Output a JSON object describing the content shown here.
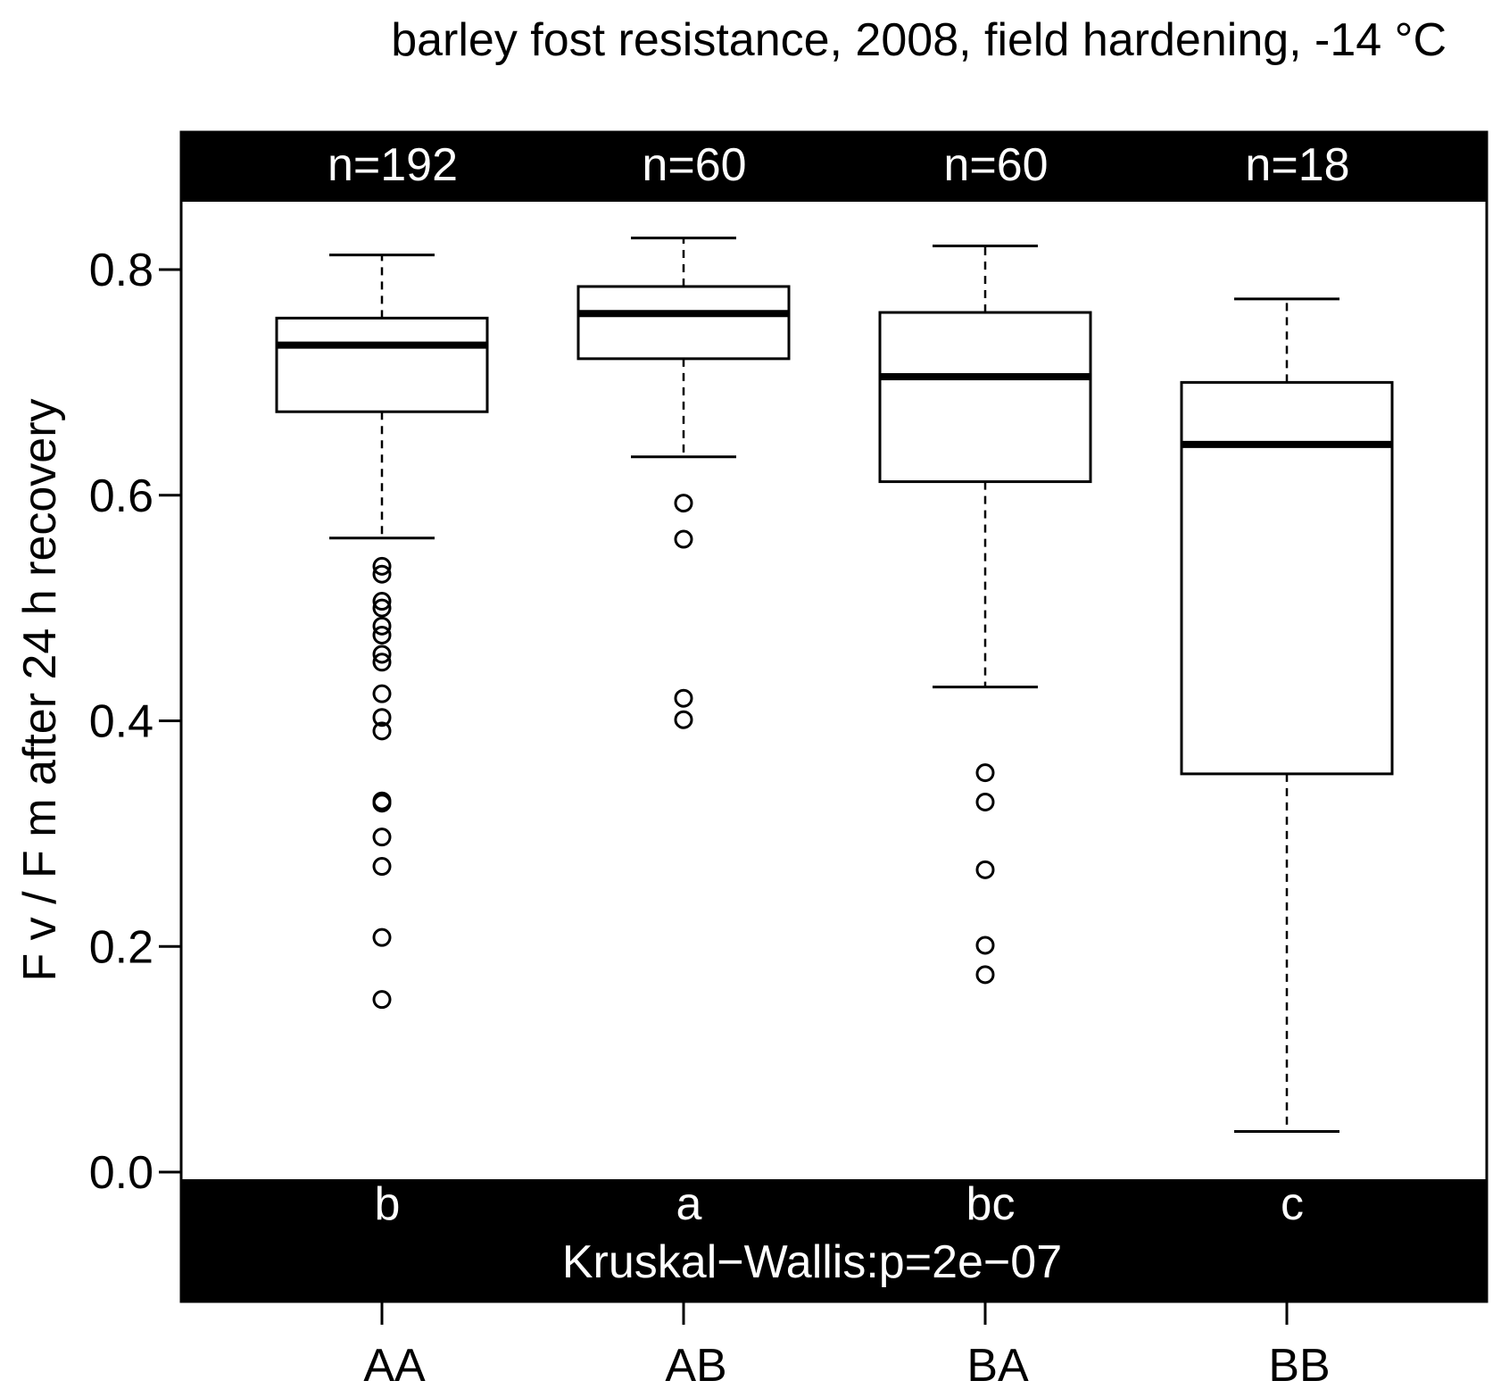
{
  "chart_data": {
    "type": "boxplot",
    "title": "barley  fost resistance, 2008, field hardening, -14  °C",
    "ylabel": "F v / F m after  24 h  recovery",
    "xlabel": "",
    "ylim": [
      -0.11,
      0.88
    ],
    "yticks": [
      0.0,
      0.2,
      0.4,
      0.6,
      0.8
    ],
    "ytick_labels": [
      "0.0",
      "0.2",
      "0.4",
      "0.6",
      "0.8"
    ],
    "categories": [
      "AA",
      "AB",
      "BA",
      "BB"
    ],
    "counts": [
      "n=192",
      "n=60",
      "n=60",
      "n=18"
    ],
    "group_letters": [
      "b",
      "a",
      "bc",
      "c"
    ],
    "test_label": "Kruskal−Wallis:p=2e−07",
    "boxes": [
      {
        "category": "AA",
        "whisker_low": 0.562,
        "q1": 0.674,
        "median": 0.733,
        "q3": 0.757,
        "whisker_high": 0.813,
        "outliers": [
          0.537,
          0.53,
          0.506,
          0.5,
          0.484,
          0.476,
          0.459,
          0.452,
          0.424,
          0.403,
          0.391,
          0.329,
          0.327,
          0.297,
          0.271,
          0.208,
          0.153
        ]
      },
      {
        "category": "AB",
        "whisker_low": 0.634,
        "q1": 0.721,
        "median": 0.761,
        "q3": 0.785,
        "whisker_high": 0.828,
        "outliers": [
          0.593,
          0.561,
          0.42,
          0.401
        ]
      },
      {
        "category": "BA",
        "whisker_low": 0.43,
        "q1": 0.612,
        "median": 0.705,
        "q3": 0.762,
        "whisker_high": 0.821,
        "outliers": [
          0.354,
          0.328,
          0.268,
          0.201,
          0.175
        ]
      },
      {
        "category": "BB",
        "whisker_low": 0.036,
        "q1": 0.353,
        "median": 0.645,
        "q3": 0.7,
        "whisker_high": 0.774,
        "outliers": []
      }
    ],
    "grid": false,
    "legend": "none",
    "colors": {
      "band": "#000000",
      "band_text": "#ffffff",
      "box_fill": "#ffffff",
      "stroke": "#000000"
    }
  }
}
